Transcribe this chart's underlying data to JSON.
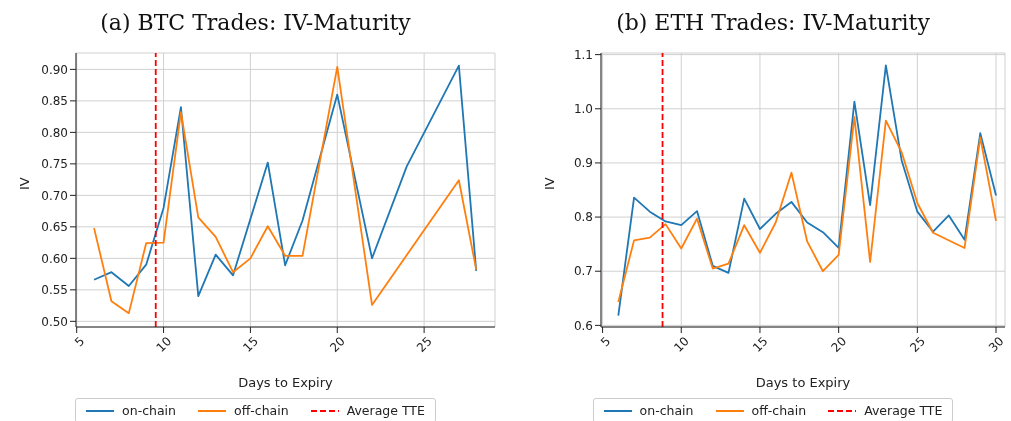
{
  "chart_data": [
    {
      "type": "line",
      "title": "(a) BTC Trades: IV-Maturity",
      "xlabel": "Days to Expiry",
      "ylabel": "IV",
      "xlim": [
        4.96,
        29.08
      ],
      "xticks": [
        5,
        10,
        15,
        20,
        25
      ],
      "ylim": [
        0.491,
        0.926
      ],
      "yticks": [
        {
          "value": 0.5,
          "label": "0.50"
        },
        0.55,
        {
          "value": 0.6,
          "label": "0.60"
        },
        0.65,
        {
          "value": 0.7,
          "label": "0.70"
        },
        0.75,
        {
          "value": 0.8,
          "label": "0.80"
        },
        0.85,
        {
          "value": 0.9,
          "label": "0.90"
        }
      ],
      "grid": true,
      "legend": "bottom",
      "line_style": "solid",
      "series": [
        {
          "name": "on-chain",
          "color": "#1f77b4",
          "x": [
            6,
            7,
            8,
            9,
            10,
            11,
            12,
            13,
            14,
            16,
            17,
            18,
            20,
            22,
            24,
            27,
            28
          ],
          "values": [
            0.566,
            0.578,
            0.556,
            0.59,
            0.68,
            0.84,
            0.54,
            0.606,
            0.573,
            0.752,
            0.589,
            0.66,
            0.86,
            0.6,
            0.746,
            0.906,
            0.58
          ]
        },
        {
          "name": "off-chain",
          "color": "#ff7f0e",
          "x": [
            6,
            7,
            8,
            9,
            10,
            11,
            12,
            13,
            14,
            15,
            16,
            17,
            18,
            20,
            22,
            27,
            28
          ],
          "values": [
            0.648,
            0.532,
            0.513,
            0.624,
            0.625,
            0.832,
            0.665,
            0.634,
            0.578,
            0.6,
            0.651,
            0.604,
            0.604,
            0.904,
            0.526,
            0.724,
            0.582
          ]
        }
      ],
      "ref_lines": [
        {
          "axis": "x",
          "value": 9.55,
          "label": "Average TTE",
          "color": "#ff0000",
          "line_style": "dashed"
        }
      ]
    },
    {
      "type": "line",
      "title": "(b) ETH Trades: IV-Maturity",
      "xlabel": "Days to Expiry",
      "ylabel": "IV",
      "xlim": [
        4.9,
        30.57
      ],
      "xticks": [
        5,
        10,
        15,
        20,
        25,
        30
      ],
      "ylim": [
        0.597,
        1.103
      ],
      "yticks": [
        0.6,
        0.7,
        0.8,
        0.9,
        {
          "value": 1,
          "label": "1.0"
        },
        1.1
      ],
      "grid": true,
      "legend": "bottom",
      "line_style": "solid",
      "series": [
        {
          "name": "on-chain",
          "color": "#1f77b4",
          "x": [
            6,
            7,
            8,
            9,
            10,
            11,
            12,
            13,
            14,
            15,
            16,
            17,
            18,
            19,
            20,
            21,
            22,
            23,
            24,
            25,
            26,
            27,
            28,
            29,
            30
          ],
          "values": [
            0.618,
            0.836,
            0.81,
            0.792,
            0.785,
            0.811,
            0.71,
            0.697,
            0.834,
            0.778,
            0.806,
            0.828,
            0.79,
            0.772,
            0.743,
            1.013,
            0.822,
            1.08,
            0.905,
            0.81,
            0.773,
            0.803,
            0.758,
            0.955,
            0.84
          ]
        },
        {
          "name": "off-chain",
          "color": "#ff7f0e",
          "x": [
            6,
            7,
            8,
            9,
            10,
            11,
            12,
            13,
            14,
            15,
            16,
            17,
            18,
            19,
            20,
            21,
            22,
            23,
            24,
            25,
            26,
            28,
            29,
            30
          ],
          "values": [
            0.643,
            0.757,
            0.762,
            0.787,
            0.742,
            0.797,
            0.705,
            0.714,
            0.785,
            0.734,
            0.79,
            0.882,
            0.755,
            0.7,
            0.73,
            0.985,
            0.717,
            0.978,
            0.92,
            0.826,
            0.771,
            0.743,
            0.947,
            0.793
          ]
        }
      ],
      "ref_lines": [
        {
          "axis": "x",
          "value": 8.81,
          "label": "Average TTE",
          "color": "#ff0000",
          "line_style": "dashed"
        }
      ]
    }
  ]
}
